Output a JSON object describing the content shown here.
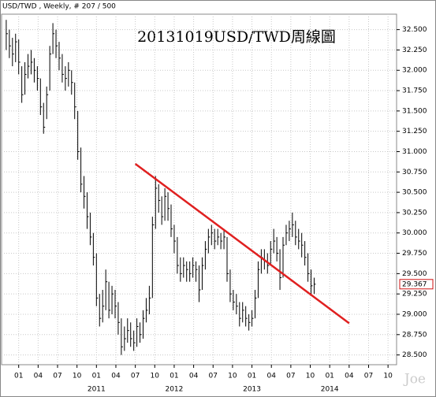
{
  "chart_data": {
    "type": "hlc",
    "header": "USD/TWD , Weekly, # 207 / 500",
    "title": "20131019USD/TWD周線圖",
    "watermark": "Joe",
    "color": "#000000",
    "x": [
      2009.84,
      2009.88,
      2009.92,
      2009.96,
      2010.0,
      2010.04,
      2010.08,
      2010.12,
      2010.16,
      2010.2,
      2010.24,
      2010.28,
      2010.32,
      2010.36,
      2010.4,
      2010.44,
      2010.48,
      2010.52,
      2010.56,
      2010.6,
      2010.64,
      2010.68,
      2010.72,
      2010.76,
      2010.8,
      2010.84,
      2010.88,
      2010.92,
      2010.96,
      2011.0,
      2011.04,
      2011.08,
      2011.12,
      2011.16,
      2011.2,
      2011.24,
      2011.28,
      2011.32,
      2011.36,
      2011.4,
      2011.44,
      2011.48,
      2011.52,
      2011.56,
      2011.6,
      2011.64,
      2011.68,
      2011.72,
      2011.76,
      2011.8,
      2011.84,
      2011.88,
      2011.92,
      2011.96,
      2012.0,
      2012.04,
      2012.08,
      2012.12,
      2012.16,
      2012.2,
      2012.24,
      2012.28,
      2012.32,
      2012.36,
      2012.4,
      2012.44,
      2012.48,
      2012.52,
      2012.56,
      2012.6,
      2012.64,
      2012.68,
      2012.72,
      2012.76,
      2012.8,
      2012.84,
      2012.88,
      2012.92,
      2012.96,
      2013.0,
      2013.04,
      2013.08,
      2013.12,
      2013.16,
      2013.2,
      2013.24,
      2013.28,
      2013.32,
      2013.36,
      2013.4,
      2013.44,
      2013.48,
      2013.52,
      2013.56,
      2013.6,
      2013.64,
      2013.68,
      2013.72,
      2013.76,
      2013.8
    ],
    "high": [
      32.62,
      32.5,
      32.4,
      32.45,
      32.38,
      32.05,
      32.1,
      32.2,
      32.25,
      32.15,
      32.05,
      31.9,
      31.6,
      31.8,
      32.3,
      32.58,
      32.5,
      32.35,
      32.2,
      32.05,
      32.1,
      32.0,
      31.85,
      31.5,
      31.05,
      30.7,
      30.5,
      30.25,
      30.0,
      29.75,
      29.25,
      29.3,
      29.55,
      29.4,
      29.35,
      29.3,
      29.15,
      28.95,
      28.85,
      28.95,
      28.9,
      28.8,
      28.95,
      28.9,
      29.05,
      29.2,
      29.35,
      30.2,
      30.7,
      30.6,
      30.45,
      30.55,
      30.5,
      30.35,
      30.1,
      29.95,
      29.7,
      29.7,
      29.65,
      29.65,
      29.7,
      29.65,
      29.6,
      29.7,
      29.9,
      30.05,
      30.1,
      30.05,
      30.05,
      30.0,
      30.05,
      29.95,
      29.55,
      29.3,
      29.25,
      29.15,
      29.15,
      29.1,
      29.0,
      29.05,
      29.3,
      29.65,
      29.8,
      29.8,
      29.75,
      29.9,
      30.05,
      29.95,
      29.8,
      29.95,
      30.1,
      30.15,
      30.25,
      30.15,
      30.05,
      30.0,
      29.9,
      29.75,
      29.55,
      29.45
    ],
    "low": [
      32.25,
      32.15,
      32.05,
      32.1,
      31.95,
      31.6,
      31.7,
      31.9,
      31.95,
      31.85,
      31.75,
      31.45,
      31.22,
      31.4,
      31.75,
      32.2,
      32.15,
      32.0,
      31.85,
      31.75,
      31.8,
      31.7,
      31.4,
      30.9,
      30.5,
      30.3,
      30.05,
      29.85,
      29.6,
      29.1,
      28.85,
      28.9,
      29.05,
      28.95,
      29.0,
      28.95,
      28.75,
      28.5,
      28.55,
      28.65,
      28.6,
      28.55,
      28.6,
      28.65,
      28.7,
      28.9,
      29.0,
      29.2,
      30.05,
      30.25,
      30.1,
      30.15,
      30.15,
      29.95,
      29.75,
      29.5,
      29.4,
      29.45,
      29.4,
      29.4,
      29.45,
      29.4,
      29.15,
      29.3,
      29.55,
      29.75,
      29.85,
      29.8,
      29.85,
      29.8,
      29.8,
      29.4,
      29.15,
      29.05,
      29.0,
      28.85,
      28.9,
      28.85,
      28.8,
      28.85,
      28.95,
      29.2,
      29.5,
      29.55,
      29.5,
      29.6,
      29.75,
      29.65,
      29.3,
      29.45,
      29.85,
      29.9,
      29.95,
      29.85,
      29.8,
      29.7,
      29.6,
      29.4,
      29.25,
      29.25
    ],
    "close": [
      32.45,
      32.3,
      32.2,
      32.35,
      32.1,
      31.7,
      31.95,
      32.05,
      32.1,
      32.0,
      31.9,
      31.55,
      31.3,
      31.7,
      32.2,
      32.45,
      32.3,
      32.15,
      31.95,
      31.9,
      32.0,
      31.85,
      31.55,
      31.0,
      30.6,
      30.45,
      30.2,
      29.95,
      29.7,
      29.2,
      28.95,
      29.1,
      29.4,
      29.05,
      29.25,
      29.1,
      28.9,
      28.6,
      28.7,
      28.8,
      28.7,
      28.65,
      28.85,
      28.75,
      28.95,
      29.05,
      29.2,
      30.1,
      30.55,
      30.4,
      30.2,
      30.45,
      30.3,
      30.05,
      29.9,
      29.6,
      29.5,
      29.6,
      29.55,
      29.5,
      29.6,
      29.55,
      29.3,
      29.6,
      29.8,
      29.95,
      30.0,
      29.9,
      29.95,
      29.9,
      29.95,
      29.5,
      29.25,
      29.15,
      29.1,
      28.95,
      29.05,
      28.95,
      28.9,
      28.95,
      29.2,
      29.55,
      29.7,
      29.65,
      29.6,
      29.8,
      29.9,
      29.75,
      29.45,
      29.85,
      30.0,
      30.05,
      30.1,
      29.95,
      29.9,
      29.85,
      29.7,
      29.5,
      29.35,
      29.37
    ],
    "last_value_label": "29.367",
    "trend_line": {
      "x": [
        2011.5,
        2014.25
      ],
      "y": [
        30.85,
        28.89
      ],
      "color": "#e02020"
    },
    "xlim": [
      2009.78,
      2014.86
    ],
    "ylim": [
      28.38,
      32.69
    ],
    "xticks": [
      {
        "value": 2010.0,
        "label": "01"
      },
      {
        "value": 2010.25,
        "label": "04"
      },
      {
        "value": 2010.5,
        "label": "07"
      },
      {
        "value": 2010.75,
        "label": "10"
      },
      {
        "value": 2011.0,
        "label": "01"
      },
      {
        "value": 2011.25,
        "label": "04"
      },
      {
        "value": 2011.5,
        "label": "07"
      },
      {
        "value": 2011.75,
        "label": "10"
      },
      {
        "value": 2012.0,
        "label": "01"
      },
      {
        "value": 2012.25,
        "label": "04"
      },
      {
        "value": 2012.5,
        "label": "07"
      },
      {
        "value": 2012.75,
        "label": "10"
      },
      {
        "value": 2013.0,
        "label": "01"
      },
      {
        "value": 2013.25,
        "label": "04"
      },
      {
        "value": 2013.5,
        "label": "07"
      },
      {
        "value": 2013.75,
        "label": "10"
      },
      {
        "value": 2014.0,
        "label": "01"
      },
      {
        "value": 2014.25,
        "label": "04"
      },
      {
        "value": 2014.5,
        "label": "07"
      },
      {
        "value": 2014.75,
        "label": "10"
      }
    ],
    "year_ticks": [
      2011,
      2012,
      2013,
      2014
    ],
    "yticks": [
      {
        "value": 28.5,
        "label": "28.500"
      },
      {
        "value": 28.75,
        "label": "28.750"
      },
      {
        "value": 29.0,
        "label": "29.000"
      },
      {
        "value": 29.25,
        "label": "29.250"
      },
      {
        "value": 29.5,
        "label": "29.500"
      },
      {
        "value": 29.75,
        "label": "29.750"
      },
      {
        "value": 30.0,
        "label": "30.000"
      },
      {
        "value": 30.25,
        "label": "30.250"
      },
      {
        "value": 30.5,
        "label": "30.500"
      },
      {
        "value": 30.75,
        "label": "30.750"
      },
      {
        "value": 31.0,
        "label": "31.000"
      },
      {
        "value": 31.25,
        "label": "31.250"
      },
      {
        "value": 31.5,
        "label": "31.500"
      },
      {
        "value": 31.75,
        "label": "31.750"
      },
      {
        "value": 32.0,
        "label": "32.000"
      },
      {
        "value": 32.25,
        "label": "32.250"
      },
      {
        "value": 32.5,
        "label": "32.500"
      }
    ],
    "grid": true
  }
}
